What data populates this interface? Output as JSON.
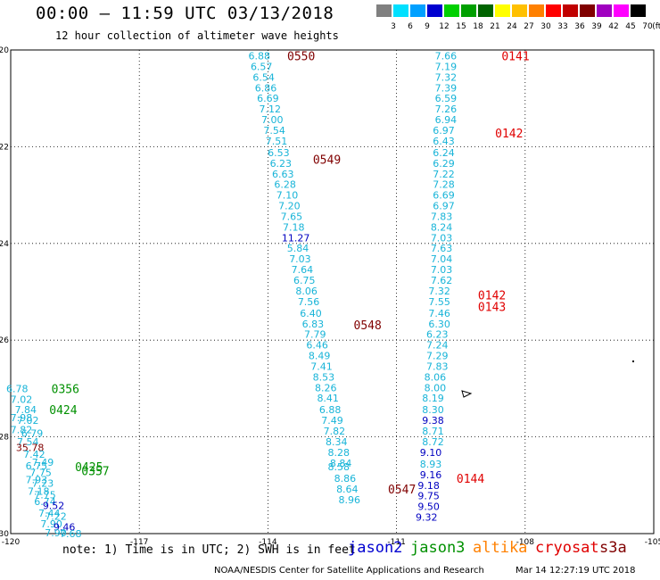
{
  "header": {
    "title": "00:00 – 11:59 UTC 03/13/2018",
    "subtitle": "12 hour collection of altimeter wave heights"
  },
  "legend": {
    "unit": "(ft)",
    "bins": [
      {
        "label": "3",
        "color": "#808080"
      },
      {
        "label": "6",
        "color": "#00e0ff"
      },
      {
        "label": "9",
        "color": "#00a0ff"
      },
      {
        "label": "12",
        "color": "#0000d0"
      },
      {
        "label": "15",
        "color": "#00d000"
      },
      {
        "label": "18",
        "color": "#00a000"
      },
      {
        "label": "21",
        "color": "#006400"
      },
      {
        "label": "24",
        "color": "#ffff00"
      },
      {
        "label": "27",
        "color": "#ffc000"
      },
      {
        "label": "30",
        "color": "#ff8000"
      },
      {
        "label": "33",
        "color": "#ff0000"
      },
      {
        "label": "36",
        "color": "#c00000"
      },
      {
        "label": "39",
        "color": "#800000"
      },
      {
        "label": "42",
        "color": "#a000c0"
      },
      {
        "label": "45",
        "color": "#ff00ff"
      },
      {
        "label": "70",
        "color": "#000000"
      }
    ]
  },
  "colors": {
    "cyan": "#18b4d8",
    "blue": "#0000c0",
    "darkred": "#800000",
    "red": "#e00000",
    "green": "#009000",
    "grid": "#000000"
  },
  "map": {
    "lon_range": [
      -120,
      -105
    ],
    "lat_range": [
      -30,
      -20
    ],
    "x_ticks": [
      "-120",
      "-117",
      "-114",
      "-111",
      "-108",
      "-105"
    ],
    "y_ticks": [
      "-20",
      "-22",
      "-24",
      "-26",
      "-28",
      "-30"
    ]
  },
  "obs": [
    {
      "t": "6.88",
      "lon": -114.2,
      "lat": -20.12,
      "c": "cyan"
    },
    {
      "t": "6.57",
      "lon": -114.15,
      "lat": -20.34,
      "c": "cyan"
    },
    {
      "t": "6.54",
      "lon": -114.1,
      "lat": -20.56,
      "c": "cyan"
    },
    {
      "t": "6.86",
      "lon": -114.05,
      "lat": -20.78,
      "c": "cyan"
    },
    {
      "t": "6.69",
      "lon": -114.0,
      "lat": -21.0,
      "c": "cyan"
    },
    {
      "t": "7.12",
      "lon": -113.95,
      "lat": -21.22,
      "c": "cyan"
    },
    {
      "t": "7.00",
      "lon": -113.9,
      "lat": -21.44,
      "c": "cyan"
    },
    {
      "t": "7.54",
      "lon": -113.85,
      "lat": -21.66,
      "c": "cyan"
    },
    {
      "t": "7.51",
      "lon": -113.8,
      "lat": -21.88,
      "c": "cyan"
    },
    {
      "t": "6.53",
      "lon": -113.75,
      "lat": -22.12,
      "c": "cyan"
    },
    {
      "t": "6.23",
      "lon": -113.7,
      "lat": -22.34,
      "c": "cyan"
    },
    {
      "t": "6.63",
      "lon": -113.65,
      "lat": -22.56,
      "c": "cyan"
    },
    {
      "t": "6.28",
      "lon": -113.6,
      "lat": -22.78,
      "c": "cyan"
    },
    {
      "t": "7.10",
      "lon": -113.55,
      "lat": -23.0,
      "c": "cyan"
    },
    {
      "t": "7.20",
      "lon": -113.5,
      "lat": -23.22,
      "c": "cyan"
    },
    {
      "t": "7.65",
      "lon": -113.45,
      "lat": -23.44,
      "c": "cyan"
    },
    {
      "t": "7.18",
      "lon": -113.4,
      "lat": -23.66,
      "c": "cyan"
    },
    {
      "t": "11.27",
      "lon": -113.35,
      "lat": -23.88,
      "c": "blue"
    },
    {
      "t": "5.84",
      "lon": -113.3,
      "lat": -24.1,
      "c": "cyan"
    },
    {
      "t": "7.03",
      "lon": -113.25,
      "lat": -24.32,
      "c": "cyan"
    },
    {
      "t": "7.64",
      "lon": -113.2,
      "lat": -24.54,
      "c": "cyan"
    },
    {
      "t": "6.75",
      "lon": -113.15,
      "lat": -24.76,
      "c": "cyan"
    },
    {
      "t": "8.06",
      "lon": -113.1,
      "lat": -24.98,
      "c": "cyan"
    },
    {
      "t": "7.56",
      "lon": -113.05,
      "lat": -25.2,
      "c": "cyan"
    },
    {
      "t": "6.40",
      "lon": -113.0,
      "lat": -25.44,
      "c": "cyan"
    },
    {
      "t": "6.83",
      "lon": -112.95,
      "lat": -25.66,
      "c": "cyan"
    },
    {
      "t": "7.79",
      "lon": -112.9,
      "lat": -25.88,
      "c": "cyan"
    },
    {
      "t": "6.46",
      "lon": -112.85,
      "lat": -26.1,
      "c": "cyan"
    },
    {
      "t": "8.49",
      "lon": -112.8,
      "lat": -26.32,
      "c": "cyan"
    },
    {
      "t": "7.41",
      "lon": -112.75,
      "lat": -26.54,
      "c": "cyan"
    },
    {
      "t": "8.53",
      "lon": -112.7,
      "lat": -26.76,
      "c": "cyan"
    },
    {
      "t": "8.26",
      "lon": -112.65,
      "lat": -26.98,
      "c": "cyan"
    },
    {
      "t": "8.41",
      "lon": -112.6,
      "lat": -27.2,
      "c": "cyan"
    },
    {
      "t": "6.88",
      "lon": -112.55,
      "lat": -27.44,
      "c": "cyan"
    },
    {
      "t": "7.49",
      "lon": -112.5,
      "lat": -27.66,
      "c": "cyan"
    },
    {
      "t": "7.82",
      "lon": -112.45,
      "lat": -27.88,
      "c": "cyan"
    },
    {
      "t": "8.34",
      "lon": -112.4,
      "lat": -28.1,
      "c": "cyan"
    },
    {
      "t": "8.28",
      "lon": -112.35,
      "lat": -28.32,
      "c": "cyan"
    },
    {
      "t": "8.84",
      "lon": -112.3,
      "lat": -28.54,
      "c": "cyan"
    },
    {
      "t": "8.58",
      "lon": -112.35,
      "lat": -28.62,
      "c": "cyan"
    },
    {
      "t": "8.86",
      "lon": -112.2,
      "lat": -28.86,
      "c": "cyan"
    },
    {
      "t": "8.64",
      "lon": -112.15,
      "lat": -29.08,
      "c": "cyan"
    },
    {
      "t": "8.96",
      "lon": -112.1,
      "lat": -29.3,
      "c": "cyan"
    },
    {
      "t": "7.66",
      "lon": -109.85,
      "lat": -20.12,
      "c": "cyan"
    },
    {
      "t": "7.19",
      "lon": -109.85,
      "lat": -20.34,
      "c": "cyan"
    },
    {
      "t": "7.32",
      "lon": -109.85,
      "lat": -20.56,
      "c": "cyan"
    },
    {
      "t": "7.39",
      "lon": -109.85,
      "lat": -20.78,
      "c": "cyan"
    },
    {
      "t": "6.59",
      "lon": -109.85,
      "lat": -21.0,
      "c": "cyan"
    },
    {
      "t": "7.26",
      "lon": -109.85,
      "lat": -21.22,
      "c": "cyan"
    },
    {
      "t": "6.94",
      "lon": -109.85,
      "lat": -21.44,
      "c": "cyan"
    },
    {
      "t": "6.97",
      "lon": -109.9,
      "lat": -21.66,
      "c": "cyan"
    },
    {
      "t": "6.43",
      "lon": -109.9,
      "lat": -21.88,
      "c": "cyan"
    },
    {
      "t": "6.24",
      "lon": -109.9,
      "lat": -22.12,
      "c": "cyan"
    },
    {
      "t": "6.29",
      "lon": -109.9,
      "lat": -22.34,
      "c": "cyan"
    },
    {
      "t": "7.22",
      "lon": -109.9,
      "lat": -22.56,
      "c": "cyan"
    },
    {
      "t": "7.28",
      "lon": -109.9,
      "lat": -22.78,
      "c": "cyan"
    },
    {
      "t": "6.69",
      "lon": -109.9,
      "lat": -23.0,
      "c": "cyan"
    },
    {
      "t": "6.97",
      "lon": -109.9,
      "lat": -23.22,
      "c": "cyan"
    },
    {
      "t": "7.83",
      "lon": -109.95,
      "lat": -23.44,
      "c": "cyan"
    },
    {
      "t": "8.24",
      "lon": -109.95,
      "lat": -23.66,
      "c": "cyan"
    },
    {
      "t": "7.03",
      "lon": -109.95,
      "lat": -23.88,
      "c": "cyan"
    },
    {
      "t": "7.63",
      "lon": -109.95,
      "lat": -24.1,
      "c": "cyan"
    },
    {
      "t": "7.04",
      "lon": -109.95,
      "lat": -24.32,
      "c": "cyan"
    },
    {
      "t": "7.03",
      "lon": -109.95,
      "lat": -24.54,
      "c": "cyan"
    },
    {
      "t": "7.62",
      "lon": -109.95,
      "lat": -24.76,
      "c": "cyan"
    },
    {
      "t": "7.32",
      "lon": -110.0,
      "lat": -24.98,
      "c": "cyan"
    },
    {
      "t": "7.55",
      "lon": -110.0,
      "lat": -25.2,
      "c": "cyan"
    },
    {
      "t": "7.46",
      "lon": -110.0,
      "lat": -25.44,
      "c": "cyan"
    },
    {
      "t": "6.30",
      "lon": -110.0,
      "lat": -25.66,
      "c": "cyan"
    },
    {
      "t": "6.23",
      "lon": -110.05,
      "lat": -25.88,
      "c": "cyan"
    },
    {
      "t": "7.24",
      "lon": -110.05,
      "lat": -26.1,
      "c": "cyan"
    },
    {
      "t": "7.29",
      "lon": -110.05,
      "lat": -26.32,
      "c": "cyan"
    },
    {
      "t": "7.83",
      "lon": -110.05,
      "lat": -26.54,
      "c": "cyan"
    },
    {
      "t": "8.06",
      "lon": -110.1,
      "lat": -26.76,
      "c": "cyan"
    },
    {
      "t": "8.00",
      "lon": -110.1,
      "lat": -26.98,
      "c": "cyan"
    },
    {
      "t": "8.19",
      "lon": -110.15,
      "lat": -27.2,
      "c": "cyan"
    },
    {
      "t": "8.30",
      "lon": -110.15,
      "lat": -27.44,
      "c": "cyan"
    },
    {
      "t": "9.38",
      "lon": -110.15,
      "lat": -27.66,
      "c": "blue"
    },
    {
      "t": "8.71",
      "lon": -110.15,
      "lat": -27.88,
      "c": "cyan"
    },
    {
      "t": "8.72",
      "lon": -110.15,
      "lat": -28.1,
      "c": "cyan"
    },
    {
      "t": "9.10",
      "lon": -110.2,
      "lat": -28.32,
      "c": "blue"
    },
    {
      "t": "8.93",
      "lon": -110.2,
      "lat": -28.56,
      "c": "cyan"
    },
    {
      "t": "9.16",
      "lon": -110.2,
      "lat": -28.78,
      "c": "blue"
    },
    {
      "t": "9.18",
      "lon": -110.25,
      "lat": -29.0,
      "c": "blue"
    },
    {
      "t": "9.75",
      "lon": -110.25,
      "lat": -29.22,
      "c": "blue"
    },
    {
      "t": "9.50",
      "lon": -110.25,
      "lat": -29.44,
      "c": "blue"
    },
    {
      "t": "9.32",
      "lon": -110.3,
      "lat": -29.66,
      "c": "blue"
    },
    {
      "t": "6.78",
      "lon": -119.85,
      "lat": -27.0,
      "c": "cyan"
    },
    {
      "t": "7.02",
      "lon": -119.75,
      "lat": -27.22,
      "c": "cyan"
    },
    {
      "t": "7.84",
      "lon": -119.65,
      "lat": -27.44,
      "c": "cyan"
    },
    {
      "t": "7.98",
      "lon": -119.75,
      "lat": -27.6,
      "c": "cyan"
    },
    {
      "t": "7.02",
      "lon": -119.6,
      "lat": -27.66,
      "c": "cyan"
    },
    {
      "t": "7.82",
      "lon": -119.75,
      "lat": -27.85,
      "c": "cyan"
    },
    {
      "t": "6.79",
      "lon": -119.5,
      "lat": -27.92,
      "c": "cyan"
    },
    {
      "t": "7.54",
      "lon": -119.6,
      "lat": -28.1,
      "c": "cyan"
    },
    {
      "t": "35.78",
      "lon": -119.55,
      "lat": -28.22,
      "c": "darkred"
    },
    {
      "t": "7.42",
      "lon": -119.45,
      "lat": -28.36,
      "c": "cyan"
    },
    {
      "t": "7.49",
      "lon": -119.25,
      "lat": -28.52,
      "c": "cyan"
    },
    {
      "t": "6.75",
      "lon": -119.4,
      "lat": -28.6,
      "c": "cyan"
    },
    {
      "t": "7.75",
      "lon": -119.3,
      "lat": -28.74,
      "c": "cyan"
    },
    {
      "t": "7.93",
      "lon": -119.4,
      "lat": -28.88,
      "c": "cyan"
    },
    {
      "t": "7.23",
      "lon": -119.25,
      "lat": -28.96,
      "c": "cyan"
    },
    {
      "t": "7.18",
      "lon": -119.35,
      "lat": -29.12,
      "c": "cyan"
    },
    {
      "t": "7.75",
      "lon": -119.2,
      "lat": -29.2,
      "c": "cyan"
    },
    {
      "t": "6.74",
      "lon": -119.2,
      "lat": -29.34,
      "c": "cyan"
    },
    {
      "t": "9.52",
      "lon": -119.0,
      "lat": -29.42,
      "c": "blue"
    },
    {
      "t": "7.44",
      "lon": -119.1,
      "lat": -29.58,
      "c": "cyan"
    },
    {
      "t": "7.22",
      "lon": -118.95,
      "lat": -29.64,
      "c": "cyan"
    },
    {
      "t": "7.90",
      "lon": -119.05,
      "lat": -29.8,
      "c": "cyan"
    },
    {
      "t": "9.46",
      "lon": -118.75,
      "lat": -29.86,
      "c": "blue"
    },
    {
      "t": "7.90",
      "lon": -118.95,
      "lat": -29.98,
      "c": "cyan"
    },
    {
      "t": "7.68",
      "lon": -118.6,
      "lat": -30.0,
      "c": "cyan"
    }
  ],
  "passes": [
    {
      "t": "0550",
      "lon": -113.55,
      "lat": -20.12,
      "c": "darkred"
    },
    {
      "t": "0549",
      "lon": -112.95,
      "lat": -22.26,
      "c": "darkred"
    },
    {
      "t": "0548",
      "lon": -112.0,
      "lat": -25.68,
      "c": "darkred"
    },
    {
      "t": "0547",
      "lon": -111.2,
      "lat": -29.08,
      "c": "darkred"
    },
    {
      "t": "0141",
      "lon": -108.55,
      "lat": -20.12,
      "c": "red"
    },
    {
      "t": "0142",
      "lon": -108.7,
      "lat": -21.72,
      "c": "red"
    },
    {
      "t": "0142",
      "lon": -109.1,
      "lat": -25.06,
      "c": "red"
    },
    {
      "t": "0143",
      "lon": -109.1,
      "lat": -25.3,
      "c": "red"
    },
    {
      "t": "0144",
      "lon": -109.6,
      "lat": -28.86,
      "c": "red"
    },
    {
      "t": "0356",
      "lon": -119.05,
      "lat": -27.0,
      "c": "green"
    },
    {
      "t": "0424",
      "lon": -119.1,
      "lat": -27.44,
      "c": "green"
    },
    {
      "t": "0425",
      "lon": -118.5,
      "lat": -28.62,
      "c": "green"
    },
    {
      "t": "0357",
      "lon": -118.35,
      "lat": -28.7,
      "c": "green"
    }
  ],
  "note": "note: 1) Time is in UTC; 2) SWH is in feet",
  "missions": [
    {
      "label": "jason2",
      "color": "#0000d0"
    },
    {
      "label": "jason3",
      "color": "#009000"
    },
    {
      "label": "altika",
      "color": "#ff8000"
    },
    {
      "label": "cryosat",
      "color": "#e00000"
    },
    {
      "label": "s3a",
      "color": "#800000"
    }
  ],
  "footer": {
    "center": "NOAA/NESDIS Center for Satellite Applications and Research",
    "timestamp": "Mar 14 12:27:19 UTC 2018"
  }
}
